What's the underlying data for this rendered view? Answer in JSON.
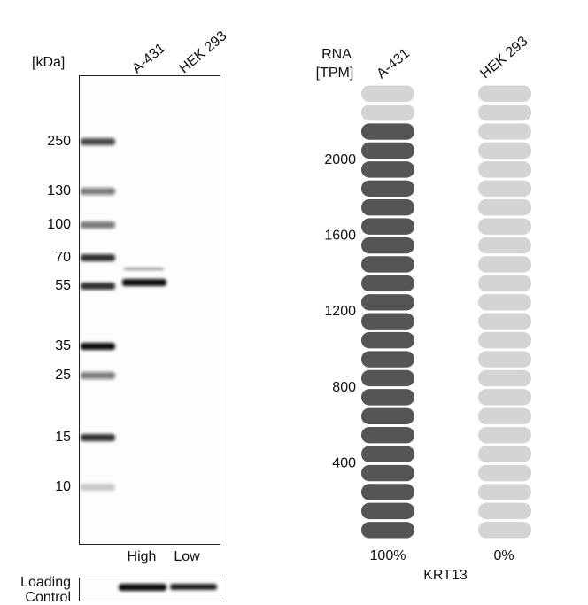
{
  "blot": {
    "unit_label": "[kDa]",
    "lanes": [
      "A-431",
      "HEK 293"
    ],
    "markers": [
      "250",
      "130",
      "100",
      "70",
      "55",
      "35",
      "25",
      "15",
      "10"
    ],
    "expression": [
      "High",
      "Low"
    ],
    "loading_control": [
      "Loading",
      "Control"
    ]
  },
  "rna": {
    "axis_label": [
      "RNA",
      "[TPM]"
    ],
    "samples": [
      "A-431",
      "HEK 293"
    ],
    "range": [
      0,
      2400
    ],
    "ticks": [
      400,
      800,
      1200,
      1600,
      2000
    ],
    "values": [
      2200,
      0
    ],
    "relative": [
      "100%",
      "0%"
    ],
    "gene": "KRT13"
  }
}
